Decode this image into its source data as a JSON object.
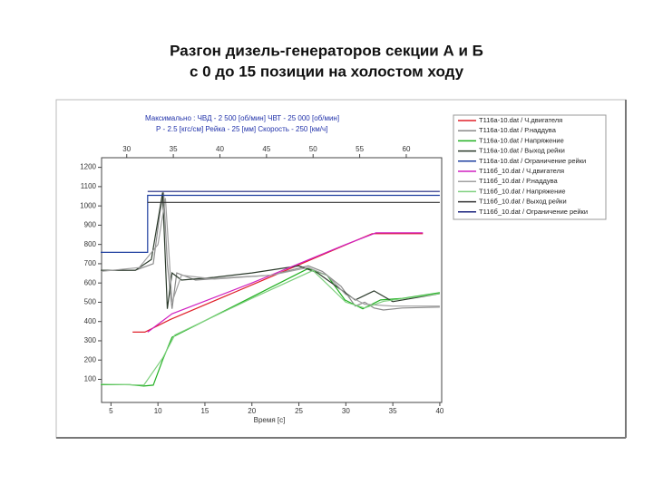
{
  "title_lines": [
    "Разгон дизель-генераторов секции А и Б",
    "с 0 до 15 позиции на холостом ходу"
  ],
  "chart_data": {
    "type": "line",
    "header_lines": [
      "Максимально :  ЧВД - 2 500 [об/мин]    ЧВТ - 25 000 [об/мин]",
      "Р - 2.5 [кгс/см]   Рейка - 25 [мм]   Скорость - 250 [км/ч]"
    ],
    "x_label": "Время [с]",
    "xlim": [
      4,
      40.2
    ],
    "xticks": [
      5,
      10,
      15,
      20,
      25,
      30,
      35,
      40
    ],
    "x2lim": [
      27.3,
      63.8
    ],
    "x2ticks": [
      30,
      35,
      40,
      45,
      50,
      55,
      60
    ],
    "ylim": [
      -20,
      1250
    ],
    "yticks": [
      100,
      200,
      300,
      400,
      500,
      600,
      700,
      800,
      900,
      1000,
      1100,
      1200
    ],
    "series": [
      {
        "name": "Т116а-10.dat / Ч.двигателя",
        "color": "#e0202a",
        "x": [
          7.3,
          8.6,
          11.3,
          20,
          30,
          32.8,
          38.2
        ],
        "values": [
          345,
          345,
          410,
          590,
          798,
          856,
          856
        ]
      },
      {
        "name": "Т116а-10.dat / Р.наддува",
        "color": "#8a8a8a",
        "x": [
          3.9,
          7.6,
          9.5,
          10.2,
          10.6,
          11,
          11.5,
          12,
          14,
          18,
          22,
          26,
          27.5,
          29.5,
          31,
          32,
          33,
          34,
          36,
          40
        ],
        "values": [
          666,
          666,
          700,
          960,
          1070,
          700,
          466,
          652,
          615,
          629,
          640,
          689,
          660,
          582,
          480,
          500,
          470,
          460,
          470,
          475
        ]
      },
      {
        "name": "Т116а-10.dat / Напряжение",
        "color": "#22b022",
        "x": [
          3.9,
          7,
          8.5,
          9.5,
          10.5,
          11.5,
          20,
          26,
          28,
          29.9,
          31.8,
          33.7,
          36,
          40
        ],
        "values": [
          72,
          72,
          65,
          70,
          200,
          318,
          527,
          675,
          640,
          512,
          466,
          512,
          520,
          550
        ]
      },
      {
        "name": "Т116а-10.dat / Выход рейки",
        "color": "#2b3a2b",
        "x": [
          3.9,
          7.6,
          9.3,
          10.5,
          11,
          11.5,
          12.5,
          16,
          20,
          25,
          27,
          29,
          31,
          33,
          35,
          40
        ],
        "values": [
          666,
          666,
          722,
          1070,
          466,
          652,
          615,
          629,
          652,
          689,
          652,
          582,
          512,
          559,
          503,
          545
        ]
      },
      {
        "name": "Т116а-10.dat / Ограничение рейки",
        "color": "#1f3fa0",
        "x": [
          3.9,
          8.9,
          8.9,
          40
        ],
        "values": [
          759,
          759,
          1055,
          1055
        ]
      },
      {
        "name": "Т116б_10.dat / Ч.двигателя",
        "color": "#d020c0",
        "x": [
          8.9,
          11.5,
          20,
          30,
          33.2,
          38.2
        ],
        "values": [
          345,
          440,
          600,
          800,
          860,
          860
        ]
      },
      {
        "name": "Т116б_10.dat / Р.наддува",
        "color": "#a0a0a0",
        "x": [
          3.9,
          8,
          10,
          10.8,
          11.5,
          12.5,
          16,
          22,
          26,
          28,
          30,
          32,
          35,
          40
        ],
        "values": [
          660,
          680,
          800,
          1040,
          500,
          640,
          620,
          640,
          680,
          640,
          540,
          490,
          480,
          480
        ]
      },
      {
        "name": "Т116б_10.dat / Напряжение",
        "color": "#7fd07f",
        "x": [
          3.9,
          8.5,
          10.5,
          11.8,
          20,
          26.5,
          30,
          32,
          34,
          40
        ],
        "values": [
          75,
          70,
          210,
          330,
          520,
          665,
          500,
          470,
          505,
          545
        ]
      },
      {
        "name": "Т116б_10.dat / Выход рейки",
        "color": "#333333",
        "x": [
          8.9,
          40
        ],
        "values": [
          1018,
          1018
        ]
      },
      {
        "name": "Т116б_10.dat / Ограничение рейки",
        "color": "#1a237e",
        "x": [
          8.9,
          40
        ],
        "values": [
          1075,
          1075
        ]
      }
    ]
  }
}
